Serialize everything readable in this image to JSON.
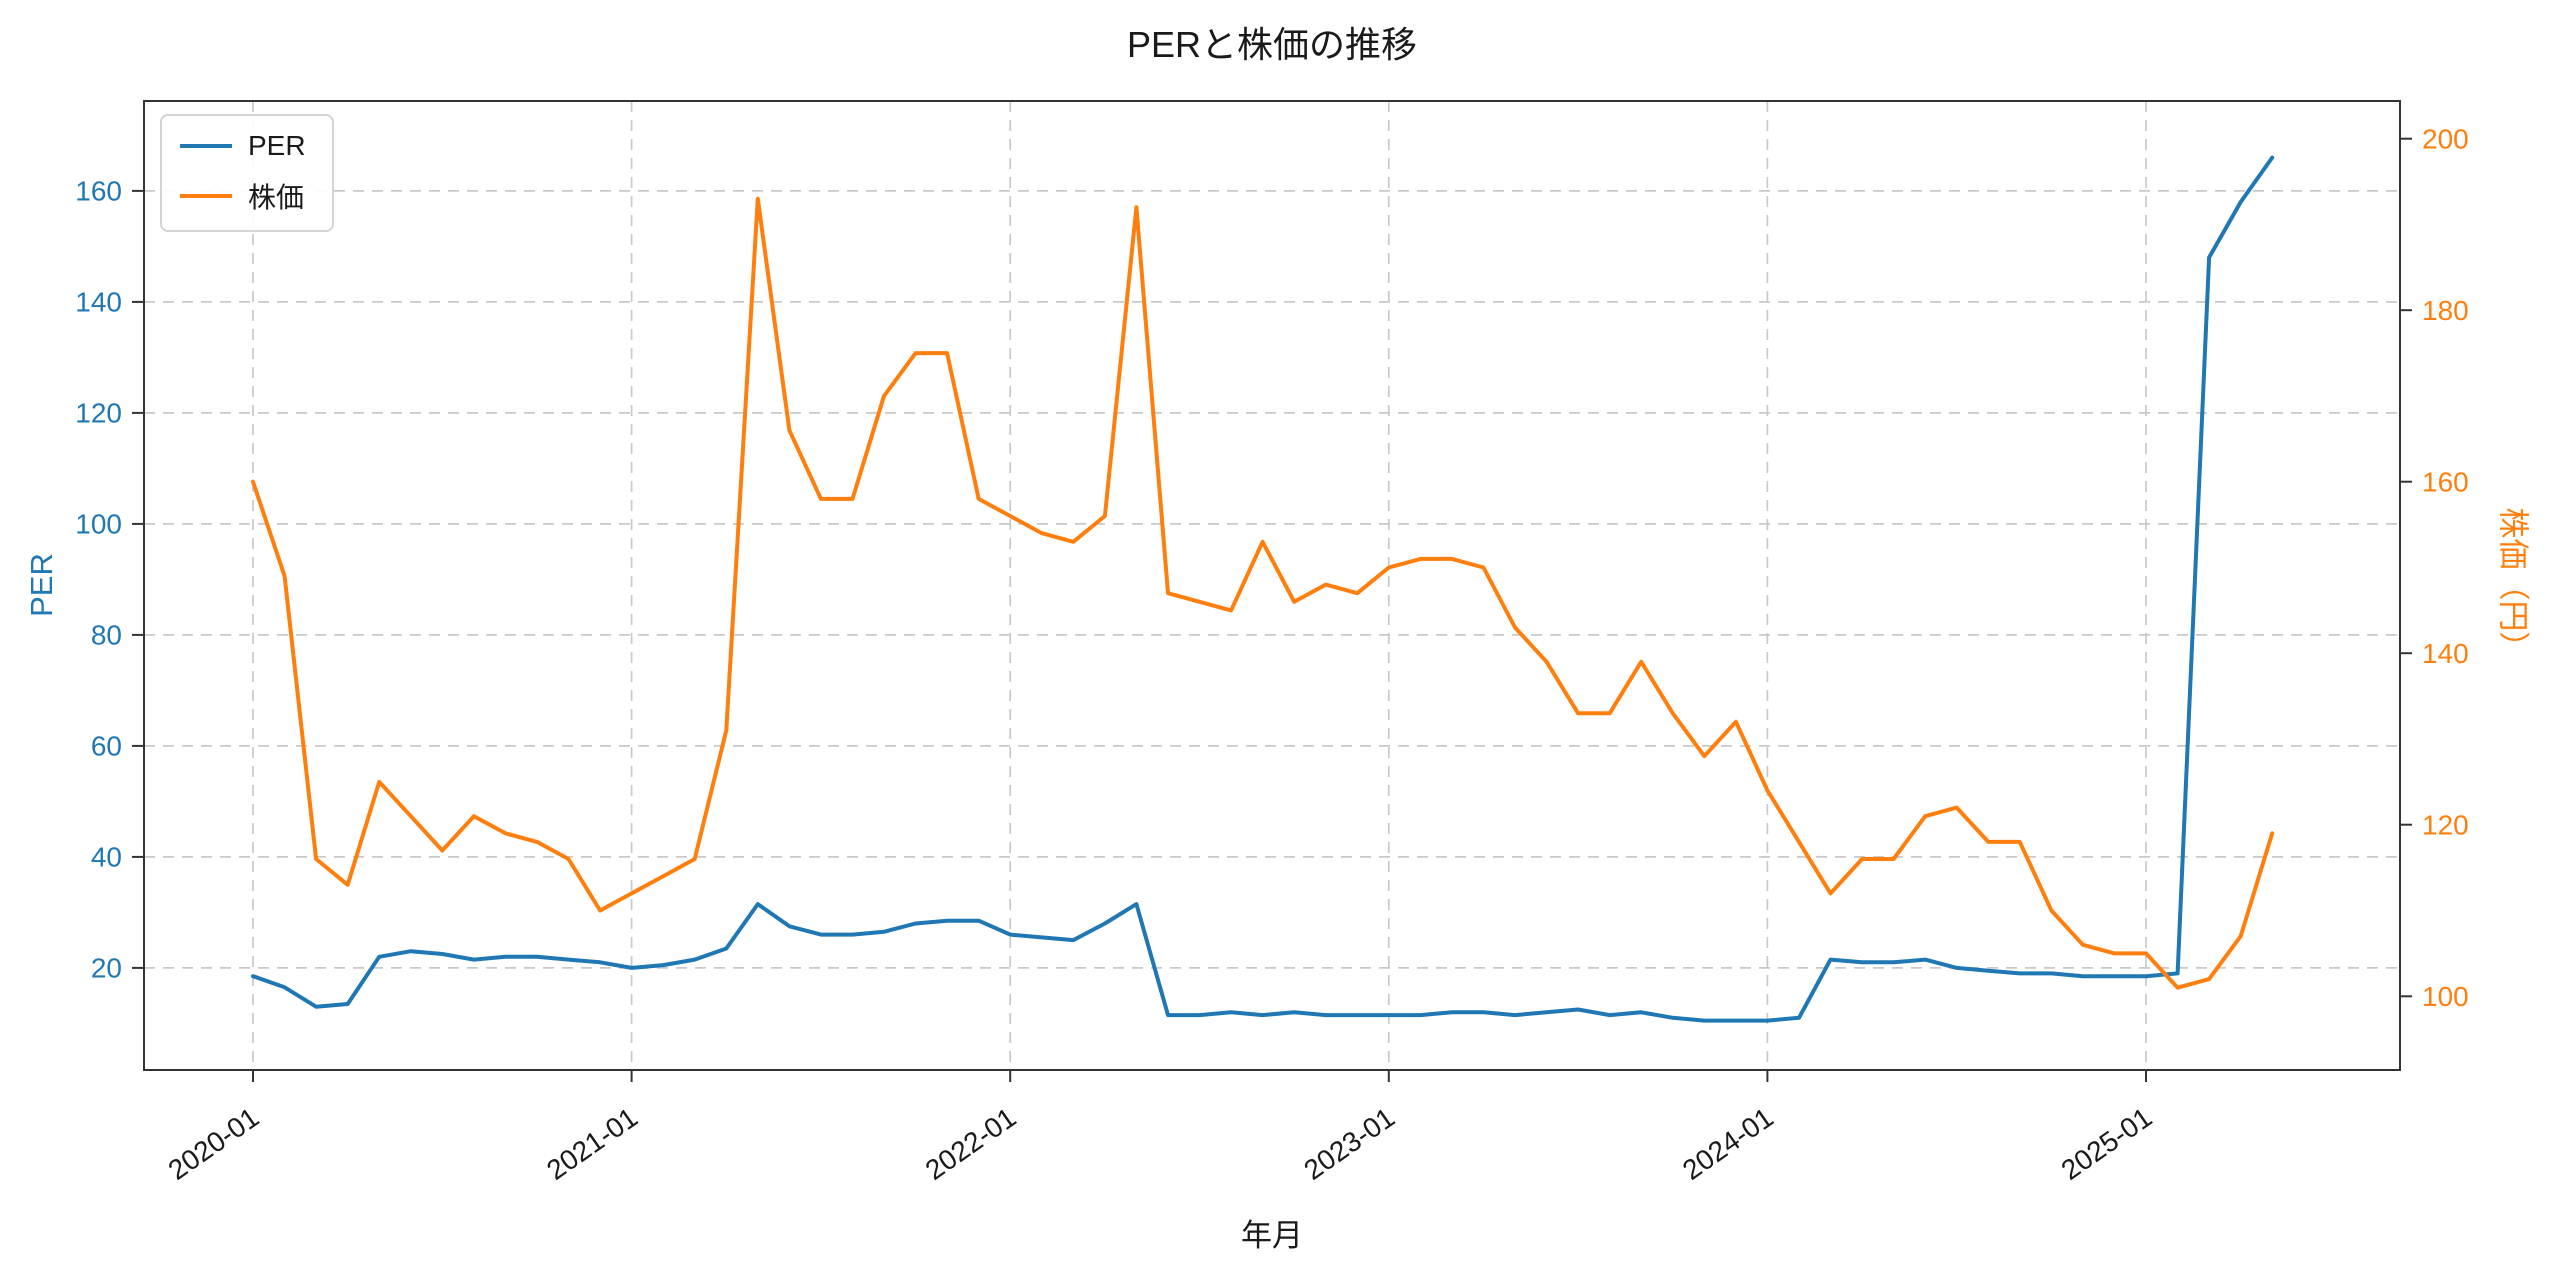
{
  "chart_data": {
    "type": "line",
    "title": "PERと株価の推移",
    "xlabel": "年月",
    "ylabel_left": "PER",
    "ylabel_right": "株価（円）",
    "grid": {
      "show": true,
      "style": "dashed",
      "color": "#c9c9c9"
    },
    "legend": {
      "position": "upper-left",
      "entries": [
        "PER",
        "株価"
      ]
    },
    "axes": {
      "left": {
        "ticks": [
          20,
          40,
          60,
          80,
          100,
          120,
          140,
          160
        ],
        "range": [
          1.6,
          176.2
        ],
        "color": "#1f77b4"
      },
      "right": {
        "ticks": [
          100,
          120,
          140,
          160,
          180,
          200
        ],
        "range": [
          91.4,
          204.4
        ],
        "color": "#ff7f0e"
      },
      "x": {
        "tick_indices": [
          0,
          12,
          24,
          36,
          48,
          60
        ],
        "tick_labels": [
          "2020-01",
          "2021-01",
          "2022-01",
          "2023-01",
          "2024-01",
          "2025-01"
        ],
        "range": [
          -3.455,
          68.05
        ]
      }
    },
    "x": [
      "2020-01",
      "2020-02",
      "2020-03",
      "2020-04",
      "2020-05",
      "2020-06",
      "2020-07",
      "2020-08",
      "2020-09",
      "2020-10",
      "2020-11",
      "2020-12",
      "2021-01",
      "2021-02",
      "2021-03",
      "2021-04",
      "2021-05",
      "2021-06",
      "2021-07",
      "2021-08",
      "2021-09",
      "2021-10",
      "2021-11",
      "2021-12",
      "2022-01",
      "2022-02",
      "2022-03",
      "2022-04",
      "2022-05",
      "2022-06",
      "2022-07",
      "2022-08",
      "2022-09",
      "2022-10",
      "2022-11",
      "2022-12",
      "2023-01",
      "2023-02",
      "2023-03",
      "2023-04",
      "2023-05",
      "2023-06",
      "2023-07",
      "2023-08",
      "2023-09",
      "2023-10",
      "2023-11",
      "2023-12",
      "2024-01",
      "2024-02",
      "2024-03",
      "2024-04",
      "2024-05",
      "2024-06",
      "2024-07",
      "2024-08",
      "2024-09",
      "2024-10",
      "2024-11",
      "2024-12",
      "2025-01",
      "2025-02",
      "2025-03",
      "2025-04",
      "2025-05"
    ],
    "series": [
      {
        "name": "PER",
        "axis": "left",
        "color": "#1f77b4",
        "values": [
          18.5,
          16.5,
          13,
          13.5,
          22,
          23,
          22.5,
          21.5,
          22,
          22,
          21.5,
          21,
          20,
          20.5,
          21.5,
          23.5,
          31.5,
          27.5,
          26,
          26,
          26.5,
          28,
          28.5,
          28.5,
          26,
          25.5,
          25,
          28,
          31.5,
          11.5,
          11.5,
          12,
          11.5,
          12,
          11.5,
          11.5,
          11.5,
          11.5,
          12,
          12,
          11.5,
          12,
          12.5,
          11.5,
          12,
          11,
          10.5,
          10.5,
          10.5,
          11,
          21.5,
          21,
          21,
          21.5,
          20,
          19.5,
          19,
          19,
          18.5,
          18.5,
          18.5,
          19,
          148,
          158,
          166
        ]
      },
      {
        "name": "株価",
        "axis": "right",
        "color": "#ff7f0e",
        "values": [
          160,
          149,
          116,
          113,
          125,
          121,
          117,
          121,
          119,
          118,
          116,
          110,
          112,
          114,
          116,
          131,
          193,
          166,
          158,
          158,
          170,
          175,
          175,
          158,
          156,
          154,
          153,
          156,
          192,
          147,
          146,
          145,
          153,
          146,
          148,
          147,
          150,
          151,
          151,
          150,
          143,
          139,
          133,
          133,
          139,
          133,
          128,
          132,
          124,
          118,
          112,
          116,
          116,
          121,
          122,
          118,
          118,
          110,
          106,
          105,
          105,
          101,
          102,
          107,
          119
        ]
      }
    ]
  }
}
